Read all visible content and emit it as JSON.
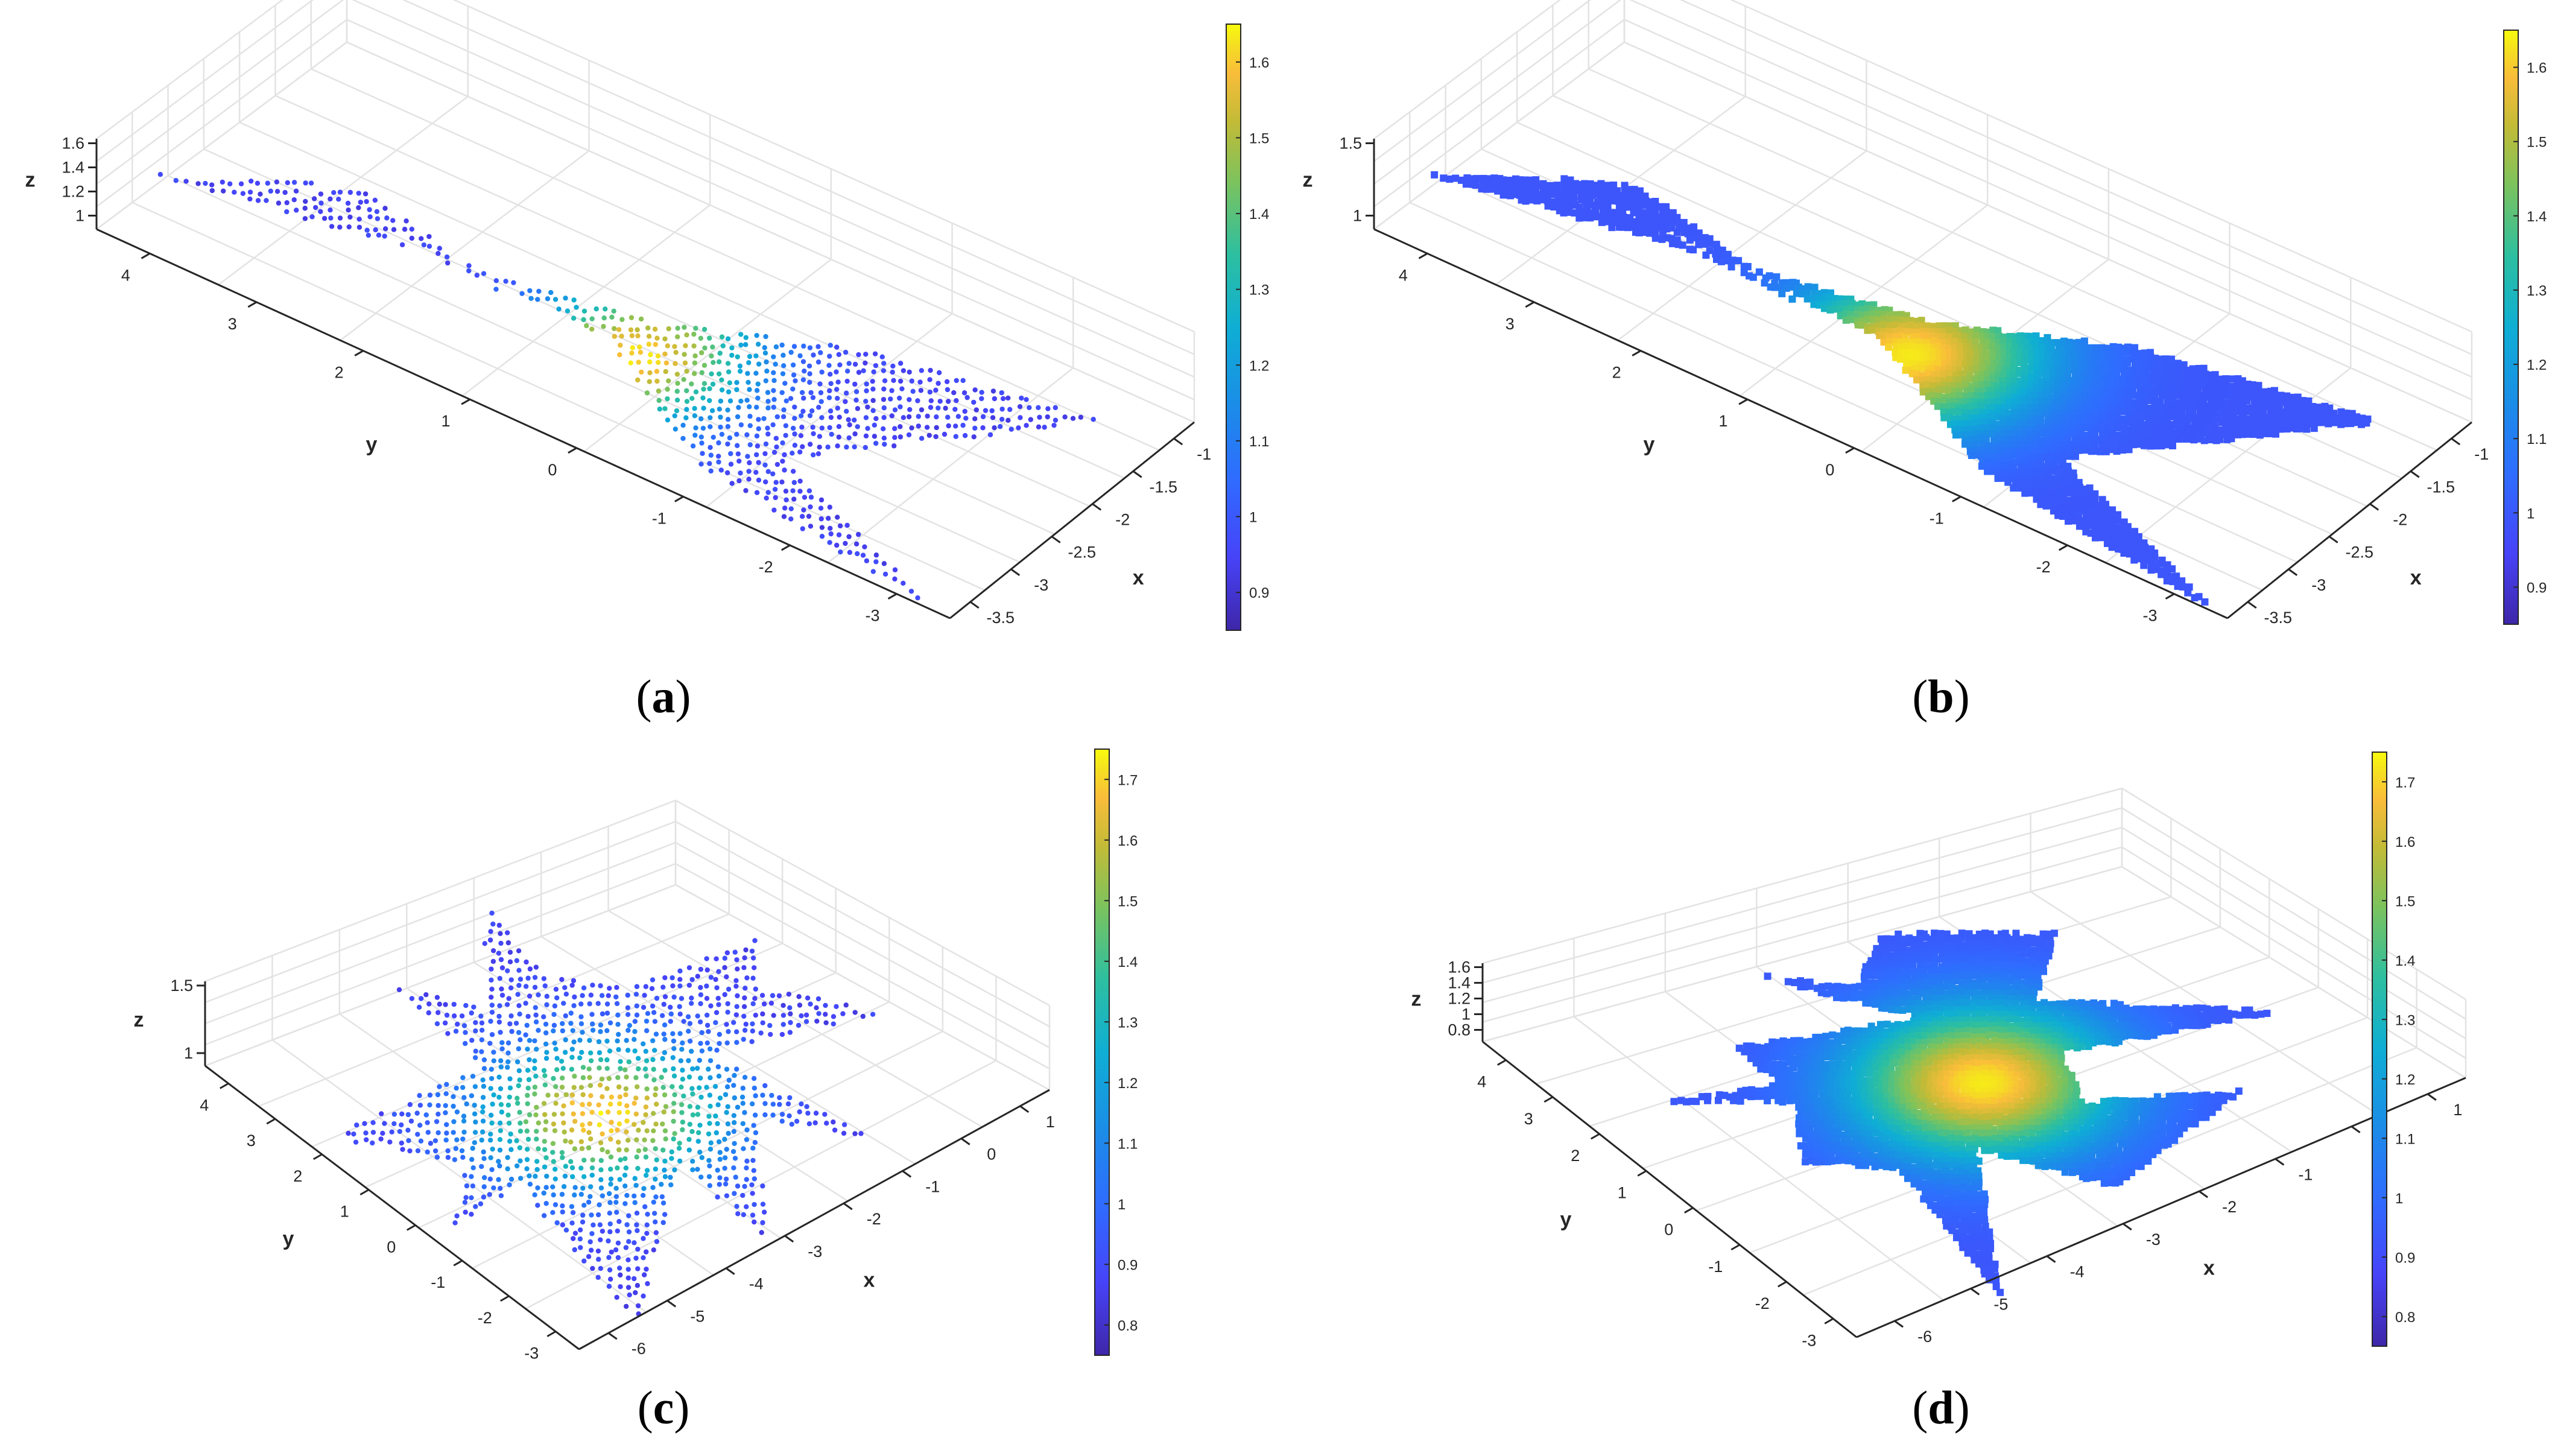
{
  "figure": {
    "panels": [
      {
        "id": "a",
        "caption_letter": "a",
        "render": "points",
        "shape": "bowtie",
        "z_ticks": [
          "1",
          "1.2",
          "1.4",
          "1.6"
        ],
        "y_ticks": [
          "4",
          "3",
          "2",
          "1",
          "0",
          "-1",
          "-2",
          "-3"
        ],
        "x_ticks": [
          "-1",
          "-1.5",
          "-2",
          "-2.5",
          "-3",
          "-3.5"
        ],
        "colorbar_ticks": [
          "0.9",
          "1",
          "1.1",
          "1.2",
          "1.3",
          "1.4",
          "1.5",
          "1.6"
        ]
      },
      {
        "id": "b",
        "caption_letter": "b",
        "render": "surface",
        "shape": "bowtie",
        "z_ticks": [
          "1",
          "1.5"
        ],
        "y_ticks": [
          "4",
          "3",
          "2",
          "1",
          "0",
          "-1",
          "-2",
          "-3"
        ],
        "x_ticks": [
          "-1",
          "-1.5",
          "-2",
          "-2.5",
          "-3",
          "-3.5"
        ],
        "colorbar_ticks": [
          "0.9",
          "1",
          "1.1",
          "1.2",
          "1.3",
          "1.4",
          "1.5",
          "1.6"
        ]
      },
      {
        "id": "c",
        "caption_letter": "c",
        "render": "points",
        "shape": "star",
        "z_ticks": [
          "1",
          "1.5"
        ],
        "y_ticks": [
          "4",
          "3",
          "2",
          "1",
          "0",
          "-1",
          "-2",
          "-3"
        ],
        "x_ticks": [
          "1",
          "0",
          "-1",
          "-2",
          "-3",
          "-4",
          "-5",
          "-6"
        ],
        "colorbar_ticks": [
          "0.8",
          "0.9",
          "1",
          "1.1",
          "1.2",
          "1.3",
          "1.4",
          "1.5",
          "1.6",
          "1.7"
        ]
      },
      {
        "id": "d",
        "caption_letter": "d",
        "render": "surface",
        "shape": "star",
        "z_ticks": [
          "0.8",
          "1",
          "1.2",
          "1.4",
          "1.6"
        ],
        "y_ticks": [
          "4",
          "3",
          "2",
          "1",
          "0",
          "-1",
          "-2",
          "-3"
        ],
        "x_ticks": [
          "1",
          "0",
          "-1",
          "-2",
          "-3",
          "-4",
          "-5",
          "-6"
        ],
        "colorbar_ticks": [
          "0.8",
          "0.9",
          "1",
          "1.1",
          "1.2",
          "1.3",
          "1.4",
          "1.5",
          "1.6",
          "1.7"
        ]
      }
    ],
    "axis_labels": {
      "x": "x",
      "y": "y",
      "z": "z"
    },
    "colormap": [
      "#3e26a8",
      "#4743f8",
      "#2f6cff",
      "#1a8fe6",
      "#0fae d4",
      "#2dbfa0",
      "#7cc35d",
      "#c3bb37",
      "#f9bd3a",
      "#f5e21f",
      "#f9fb0e"
    ]
  },
  "chart_data": [
    {
      "type": "scatter",
      "panel": "a",
      "xlabel": "x",
      "ylabel": "y",
      "zlabel": "z",
      "xlim": [
        -3.7,
        -0.9
      ],
      "ylim": [
        -3.3,
        4.6
      ],
      "zlim": [
        0.9,
        1.65
      ],
      "clim": [
        0.86,
        1.66
      ]
    },
    {
      "type": "surface",
      "panel": "b",
      "xlabel": "x",
      "ylabel": "y",
      "zlabel": "z",
      "xlim": [
        -3.7,
        -0.9
      ],
      "ylim": [
        -3.3,
        4.6
      ],
      "zlim": [
        0.9,
        1.65
      ],
      "clim": [
        0.86,
        1.66
      ]
    },
    {
      "type": "scatter",
      "panel": "c",
      "xlabel": "x",
      "ylabel": "y",
      "zlabel": "z",
      "xlim": [
        -6.3,
        1.2
      ],
      "ylim": [
        -3.3,
        4.6
      ],
      "zlim": [
        0.8,
        1.7
      ],
      "clim": [
        0.79,
        1.71
      ]
    },
    {
      "type": "surface",
      "panel": "d",
      "xlabel": "x",
      "ylabel": "y",
      "zlabel": "z",
      "xlim": [
        -6.3,
        1.2
      ],
      "ylim": [
        -3.3,
        4.6
      ],
      "zlim": [
        0.8,
        1.7
      ],
      "clim": [
        0.77,
        1.72
      ]
    }
  ]
}
